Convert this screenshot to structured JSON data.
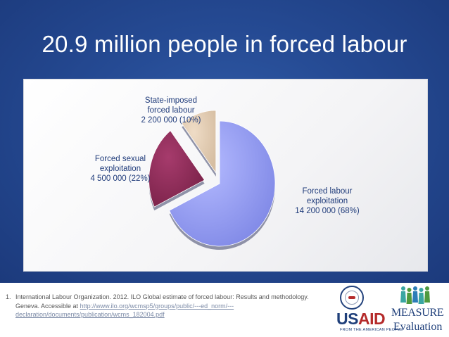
{
  "slide": {
    "title": "20.9 million people in forced labour"
  },
  "chart_data": {
    "type": "pie",
    "title": "",
    "slices": [
      {
        "label_lines": [
          "Forced labour",
          "exploitation",
          "14 200 000 (68%)"
        ],
        "value": 14200000,
        "percent": 68,
        "color": "#8f97ee"
      },
      {
        "label_lines": [
          "Forced sexual",
          "exploitation",
          "4 500 000 (22%)"
        ],
        "value": 4500000,
        "percent": 22,
        "color": "#8a2b55"
      },
      {
        "label_lines": [
          "State-imposed",
          "forced labour",
          "2 200 000 (10%)"
        ],
        "value": 2200000,
        "percent": 10,
        "color": "#dec7ad"
      }
    ]
  },
  "footnote": {
    "number": "1.",
    "text": "International Labour Organization. 2012. ILO Global estimate of forced labour: Results and methodology. Geneva. Accessible at",
    "link": "http://www.ilo.org/wcmsp5/groups/public/---ed_norm/---declaration/documents/publication/wcms_182004.pdf"
  },
  "logos": {
    "usaid_word": "USAID",
    "usaid_tagline": "FROM THE AMERICAN PEOPLE",
    "measure_line1": "MEASURE",
    "measure_line2": "Evaluation",
    "brand_blue": "#1f3f7a",
    "brand_red": "#b52b2b",
    "people_colors": [
      "#3aa6a2",
      "#4f9a3e",
      "#2c7db8",
      "#3aa6a2",
      "#4f9a3e"
    ]
  }
}
